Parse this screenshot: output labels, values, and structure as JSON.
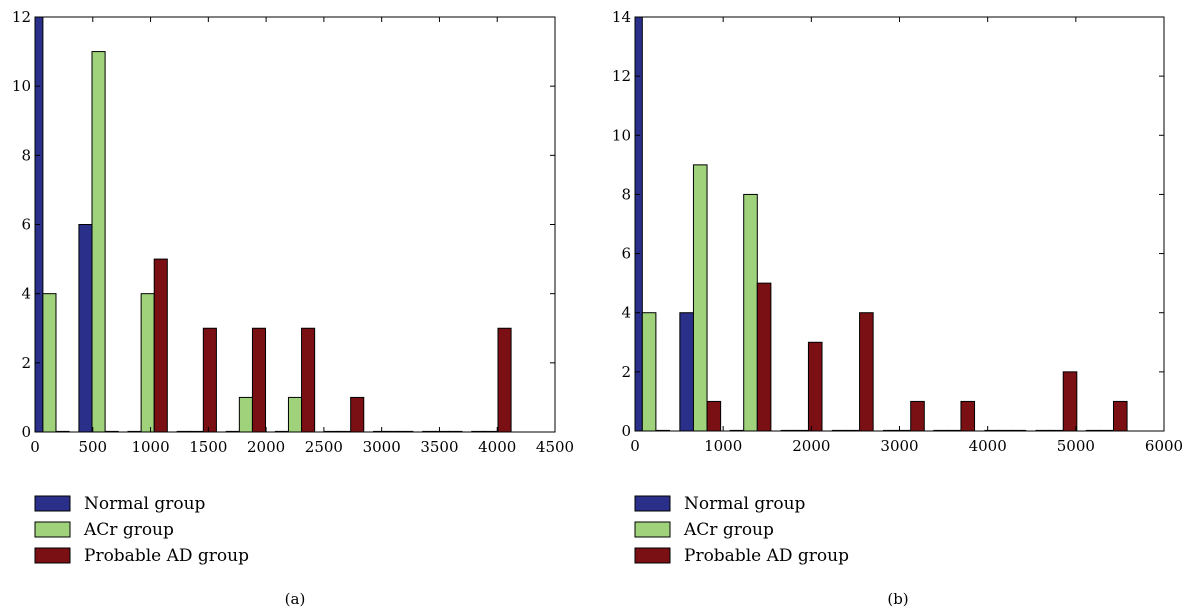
{
  "chart_data": [
    {
      "type": "bar",
      "panel_label": "(a)",
      "xlim": [
        0,
        4500
      ],
      "ylim": [
        0,
        12
      ],
      "xticks": [
        "0",
        "500",
        "1000",
        "1500",
        "2000",
        "2500",
        "3000",
        "3500",
        "4000",
        "4500"
      ],
      "yticks": [
        "0",
        "2",
        "4",
        "6",
        "8",
        "10",
        "12"
      ],
      "bin_centers": [
        125,
        550,
        975,
        1400,
        1825,
        2250,
        2675,
        3100,
        3525,
        3950
      ],
      "bin_width": 425,
      "series": [
        {
          "name": "Normal group",
          "color": "#2a2f8a",
          "values": [
            12,
            6,
            0,
            0,
            0,
            0,
            0,
            0,
            0,
            0
          ]
        },
        {
          "name": "ACr group",
          "color": "#9fd27a",
          "values": [
            4,
            11,
            4,
            0,
            1,
            1,
            0,
            0,
            0,
            0
          ]
        },
        {
          "name": "Probable AD group",
          "color": "#7a1014",
          "values": [
            0,
            0,
            5,
            3,
            3,
            3,
            1,
            0,
            0,
            3
          ]
        }
      ],
      "legend_position": "below"
    },
    {
      "type": "bar",
      "panel_label": "(b)",
      "xlim": [
        0,
        6000
      ],
      "ylim": [
        0,
        14
      ],
      "xticks": [
        "0",
        "1000",
        "2000",
        "3000",
        "4000",
        "5000",
        "6000"
      ],
      "yticks": [
        "0",
        "2",
        "4",
        "6",
        "8",
        "10",
        "12",
        "14"
      ],
      "bin_centers": [
        160,
        740,
        1310,
        1890,
        2470,
        3050,
        3620,
        4200,
        4780,
        5350
      ],
      "bin_width": 578,
      "series": [
        {
          "name": "Normal group",
          "color": "#2a2f8a",
          "values": [
            14,
            4,
            0,
            0,
            0,
            0,
            0,
            0,
            0,
            0
          ]
        },
        {
          "name": "ACr group",
          "color": "#9fd27a",
          "values": [
            4,
            9,
            8,
            0,
            0,
            0,
            0,
            0,
            0,
            0
          ]
        },
        {
          "name": "Probable AD group",
          "color": "#7a1014",
          "values": [
            0,
            1,
            5,
            3,
            4,
            1,
            1,
            0,
            2,
            1
          ]
        }
      ],
      "legend_position": "below"
    }
  ]
}
